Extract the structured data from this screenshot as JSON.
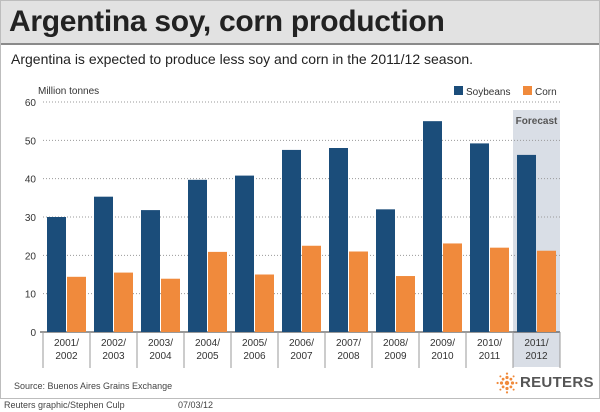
{
  "header": {
    "title": "Argentina soy, corn production",
    "subtitle": "Argentina is expected to produce less soy and corn in the 2011/12 season."
  },
  "footer": {
    "source": "Source:  Buenos Aires Grains Exchange",
    "credit": "Reuters graphic/Stephen Culp",
    "date": "07/03/12",
    "logo_text": "REUTERS"
  },
  "chart_data": {
    "type": "bar",
    "ylabel": "Million tonnes",
    "ylim": [
      0,
      60
    ],
    "yticks": [
      0,
      10,
      20,
      30,
      40,
      50,
      60
    ],
    "grid": true,
    "legend": "top-right",
    "categories": [
      [
        "2001/",
        "2002"
      ],
      [
        "2002/",
        "2003"
      ],
      [
        "2003/",
        "2004"
      ],
      [
        "2004/",
        "2005"
      ],
      [
        "2005/",
        "2006"
      ],
      [
        "2006/",
        "2007"
      ],
      [
        "2007/",
        "2008"
      ],
      [
        "2008/",
        "2009"
      ],
      [
        "2009/",
        "2010"
      ],
      [
        "2010/",
        "2011"
      ],
      [
        "2011/",
        "2012"
      ]
    ],
    "series": [
      {
        "name": "Soybeans",
        "color": "#1b4d7a",
        "values": [
          30.0,
          35.3,
          31.8,
          39.7,
          40.8,
          47.5,
          48.0,
          32.0,
          55.0,
          49.2,
          46.2
        ]
      },
      {
        "name": "Corn",
        "color": "#f08a3c",
        "values": [
          14.4,
          15.5,
          13.9,
          20.9,
          15.0,
          22.5,
          21.0,
          14.6,
          23.1,
          22.0,
          21.2
        ]
      }
    ],
    "annotation": {
      "label": "Forecast",
      "category_index": 10,
      "shade_color": "#d9dee6"
    }
  }
}
